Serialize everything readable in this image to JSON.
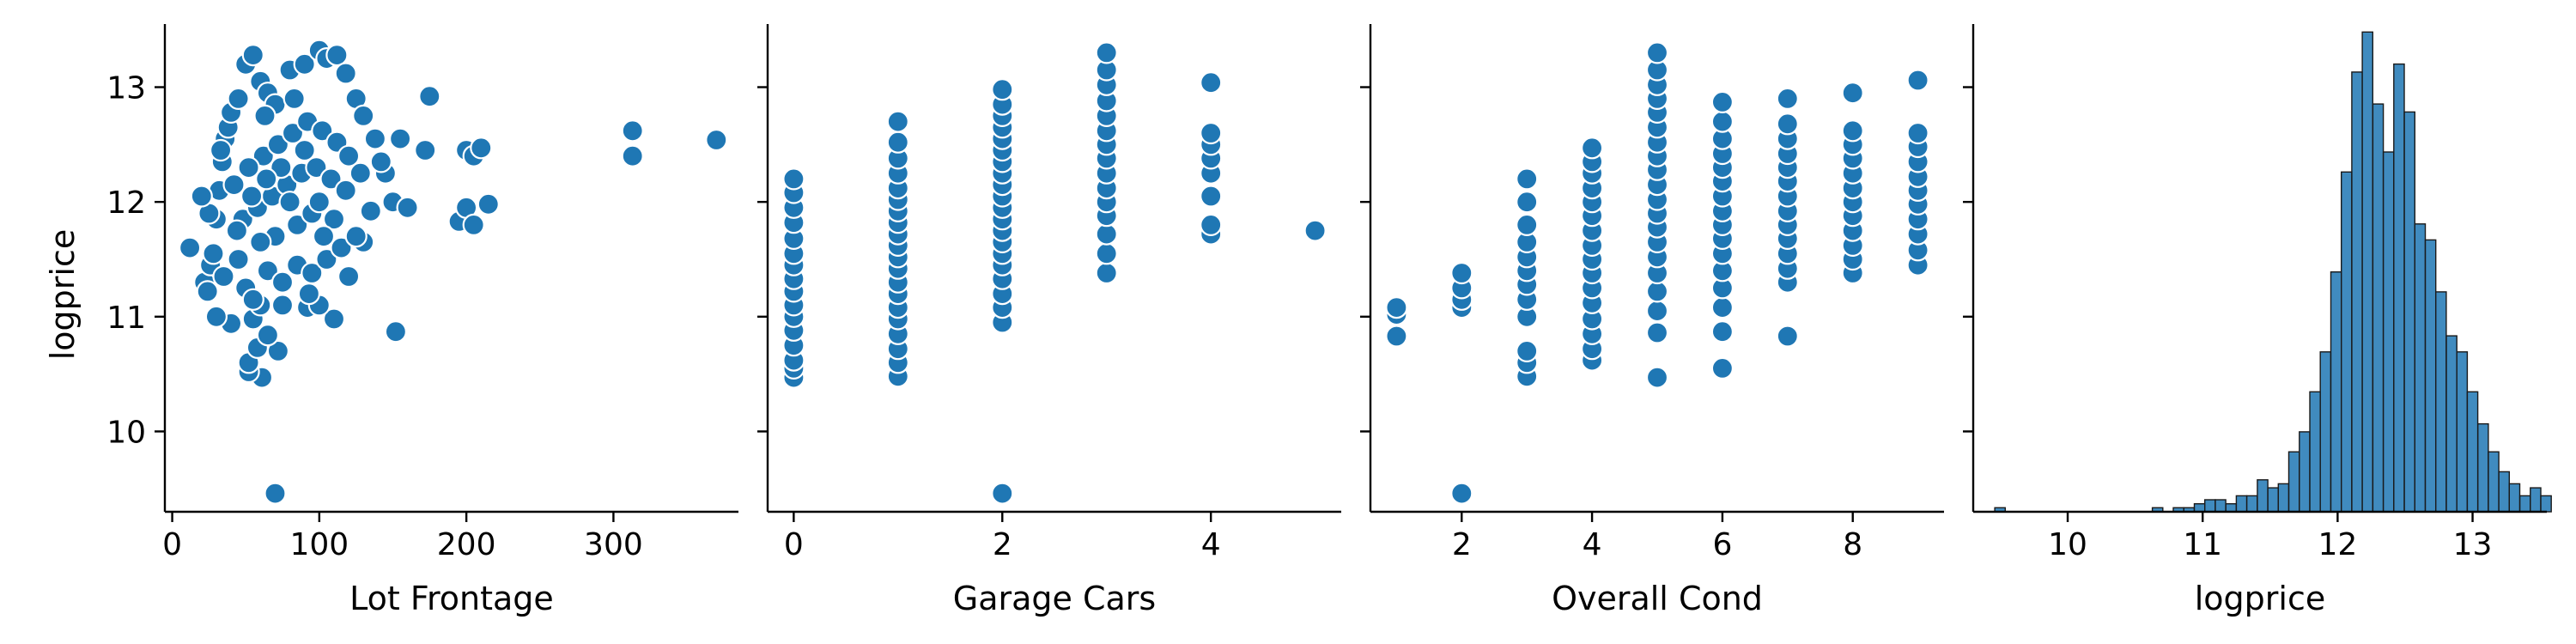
{
  "colors": {
    "marker": "#1f77b4",
    "marker_edge": "#ffffff",
    "bar": "#1f77b4",
    "bar_edge": "#1a1a1a",
    "axis": "#000000"
  },
  "figure": {
    "ylabel": "logprice"
  },
  "chart_data": [
    {
      "type": "scatter",
      "title": "",
      "xlabel": "Lot Frontage",
      "ylabel": "logprice",
      "xlim": [
        -5,
        385
      ],
      "ylim": [
        9.3,
        13.55
      ],
      "xticks": [
        0,
        100,
        200,
        300
      ],
      "yticks": [
        10,
        11,
        12,
        13
      ],
      "grid": false,
      "points": [
        [
          70,
          9.46
        ],
        [
          152,
          10.87
        ],
        [
          61,
          10.47
        ],
        [
          52,
          10.52
        ],
        [
          52,
          10.6
        ],
        [
          58,
          10.73
        ],
        [
          72,
          10.7
        ],
        [
          65,
          10.84
        ],
        [
          92,
          11.08
        ],
        [
          110,
          10.98
        ],
        [
          40,
          10.94
        ],
        [
          55,
          10.98
        ],
        [
          60,
          11.1
        ],
        [
          75,
          11.1
        ],
        [
          100,
          11.1
        ],
        [
          120,
          11.35
        ],
        [
          130,
          11.65
        ],
        [
          135,
          11.92
        ],
        [
          150,
          12.0
        ],
        [
          160,
          11.95
        ],
        [
          145,
          12.25
        ],
        [
          155,
          12.55
        ],
        [
          172,
          12.45
        ],
        [
          175,
          12.92
        ],
        [
          195,
          11.83
        ],
        [
          200,
          11.95
        ],
        [
          205,
          11.8
        ],
        [
          200,
          12.45
        ],
        [
          205,
          12.4
        ],
        [
          210,
          12.47
        ],
        [
          215,
          11.98
        ],
        [
          313,
          12.62
        ],
        [
          313,
          12.4
        ],
        [
          370,
          12.54
        ],
        [
          12,
          11.6
        ],
        [
          22,
          11.3
        ],
        [
          24,
          11.22
        ],
        [
          26,
          11.45
        ],
        [
          28,
          11.55
        ],
        [
          30,
          11.85
        ],
        [
          32,
          12.1
        ],
        [
          34,
          12.35
        ],
        [
          36,
          12.55
        ],
        [
          38,
          12.65
        ],
        [
          40,
          12.78
        ],
        [
          45,
          12.9
        ],
        [
          50,
          13.2
        ],
        [
          55,
          13.28
        ],
        [
          60,
          13.05
        ],
        [
          65,
          12.95
        ],
        [
          70,
          12.85
        ],
        [
          80,
          13.15
        ],
        [
          90,
          13.2
        ],
        [
          100,
          13.32
        ],
        [
          105,
          13.25
        ],
        [
          112,
          13.28
        ],
        [
          118,
          13.12
        ],
        [
          125,
          12.9
        ],
        [
          130,
          12.75
        ],
        [
          138,
          12.55
        ],
        [
          142,
          12.35
        ],
        [
          35,
          11.35
        ],
        [
          45,
          11.5
        ],
        [
          50,
          11.25
        ],
        [
          55,
          11.15
        ],
        [
          65,
          11.4
        ],
        [
          75,
          11.3
        ],
        [
          85,
          11.45
        ],
        [
          95,
          11.38
        ],
        [
          105,
          11.5
        ],
        [
          115,
          11.6
        ],
        [
          125,
          11.7
        ],
        [
          48,
          11.85
        ],
        [
          58,
          11.95
        ],
        [
          68,
          12.05
        ],
        [
          78,
          12.15
        ],
        [
          88,
          12.25
        ],
        [
          98,
          12.3
        ],
        [
          108,
          12.2
        ],
        [
          118,
          12.1
        ],
        [
          62,
          12.4
        ],
        [
          72,
          12.5
        ],
        [
          82,
          12.6
        ],
        [
          92,
          12.7
        ],
        [
          102,
          12.62
        ],
        [
          112,
          12.52
        ],
        [
          42,
          12.15
        ],
        [
          52,
          12.3
        ],
        [
          85,
          11.8
        ],
        [
          95,
          11.9
        ],
        [
          70,
          11.7
        ],
        [
          60,
          11.65
        ],
        [
          80,
          12.0
        ],
        [
          90,
          12.45
        ],
        [
          100,
          12.0
        ],
        [
          74,
          12.3
        ],
        [
          64,
          12.2
        ],
        [
          54,
          12.05
        ],
        [
          44,
          11.75
        ],
        [
          110,
          11.85
        ],
        [
          120,
          12.4
        ],
        [
          128,
          12.25
        ],
        [
          30,
          11.0
        ],
        [
          25,
          11.9
        ],
        [
          20,
          12.05
        ],
        [
          33,
          12.45
        ],
        [
          63,
          12.75
        ],
        [
          83,
          12.9
        ],
        [
          93,
          11.2
        ],
        [
          103,
          11.7
        ]
      ]
    },
    {
      "type": "scatter",
      "title": "",
      "xlabel": "Garage Cars",
      "ylabel": "",
      "xlim": [
        -0.25,
        5.25
      ],
      "ylim": [
        9.3,
        13.55
      ],
      "xticks": [
        0,
        2,
        4
      ],
      "yticks": [
        10,
        11,
        12,
        13
      ],
      "grid": false,
      "points": [
        [
          0,
          10.47
        ],
        [
          0,
          10.55
        ],
        [
          0,
          10.62
        ],
        [
          0,
          10.75
        ],
        [
          0,
          10.88
        ],
        [
          0,
          11.0
        ],
        [
          0,
          11.1
        ],
        [
          0,
          11.22
        ],
        [
          0,
          11.33
        ],
        [
          0,
          11.45
        ],
        [
          0,
          11.55
        ],
        [
          0,
          11.68
        ],
        [
          0,
          11.82
        ],
        [
          0,
          11.95
        ],
        [
          0,
          12.08
        ],
        [
          0,
          12.2
        ],
        [
          1,
          10.48
        ],
        [
          1,
          10.6
        ],
        [
          1,
          10.72
        ],
        [
          1,
          10.85
        ],
        [
          1,
          10.98
        ],
        [
          1,
          11.08
        ],
        [
          1,
          11.2
        ],
        [
          1,
          11.3
        ],
        [
          1,
          11.42
        ],
        [
          1,
          11.52
        ],
        [
          1,
          11.62
        ],
        [
          1,
          11.72
        ],
        [
          1,
          11.82
        ],
        [
          1,
          11.92
        ],
        [
          1,
          12.02
        ],
        [
          1,
          12.12
        ],
        [
          1,
          12.25
        ],
        [
          1,
          12.38
        ],
        [
          1,
          12.52
        ],
        [
          1,
          12.7
        ],
        [
          2,
          9.46
        ],
        [
          2,
          10.95
        ],
        [
          2,
          11.08
        ],
        [
          2,
          11.2
        ],
        [
          2,
          11.33
        ],
        [
          2,
          11.45
        ],
        [
          2,
          11.55
        ],
        [
          2,
          11.65
        ],
        [
          2,
          11.75
        ],
        [
          2,
          11.85
        ],
        [
          2,
          11.95
        ],
        [
          2,
          12.05
        ],
        [
          2,
          12.15
        ],
        [
          2,
          12.25
        ],
        [
          2,
          12.35
        ],
        [
          2,
          12.45
        ],
        [
          2,
          12.55
        ],
        [
          2,
          12.65
        ],
        [
          2,
          12.75
        ],
        [
          2,
          12.85
        ],
        [
          2,
          12.98
        ],
        [
          3,
          11.38
        ],
        [
          3,
          11.55
        ],
        [
          3,
          11.72
        ],
        [
          3,
          11.88
        ],
        [
          3,
          12.0
        ],
        [
          3,
          12.12
        ],
        [
          3,
          12.25
        ],
        [
          3,
          12.38
        ],
        [
          3,
          12.5
        ],
        [
          3,
          12.62
        ],
        [
          3,
          12.75
        ],
        [
          3,
          12.88
        ],
        [
          3,
          13.02
        ],
        [
          3,
          13.15
        ],
        [
          3,
          13.3
        ],
        [
          4,
          11.72
        ],
        [
          4,
          11.8
        ],
        [
          4,
          12.05
        ],
        [
          4,
          12.25
        ],
        [
          4,
          12.38
        ],
        [
          4,
          12.5
        ],
        [
          4,
          12.6
        ],
        [
          4,
          13.04
        ],
        [
          5,
          11.75
        ]
      ]
    },
    {
      "type": "scatter",
      "title": "",
      "xlabel": "Overall Cond",
      "ylabel": "",
      "xlim": [
        0.6,
        9.4
      ],
      "ylim": [
        9.3,
        13.55
      ],
      "xticks": [
        2,
        4,
        6,
        8
      ],
      "yticks": [
        10,
        11,
        12,
        13
      ],
      "grid": false,
      "points": [
        [
          1,
          10.83
        ],
        [
          1,
          11.02
        ],
        [
          1,
          11.08
        ],
        [
          2,
          9.46
        ],
        [
          2,
          11.08
        ],
        [
          2,
          11.15
        ],
        [
          2,
          11.25
        ],
        [
          2,
          11.38
        ],
        [
          3,
          10.48
        ],
        [
          3,
          10.6
        ],
        [
          3,
          10.7
        ],
        [
          3,
          11.0
        ],
        [
          3,
          11.15
        ],
        [
          3,
          11.28
        ],
        [
          3,
          11.4
        ],
        [
          3,
          11.52
        ],
        [
          3,
          11.65
        ],
        [
          3,
          11.8
        ],
        [
          3,
          12.0
        ],
        [
          3,
          12.2
        ],
        [
          4,
          10.62
        ],
        [
          4,
          10.72
        ],
        [
          4,
          10.85
        ],
        [
          4,
          10.98
        ],
        [
          4,
          11.12
        ],
        [
          4,
          11.25
        ],
        [
          4,
          11.38
        ],
        [
          4,
          11.5
        ],
        [
          4,
          11.62
        ],
        [
          4,
          11.75
        ],
        [
          4,
          11.88
        ],
        [
          4,
          12.0
        ],
        [
          4,
          12.12
        ],
        [
          4,
          12.25
        ],
        [
          4,
          12.35
        ],
        [
          4,
          12.47
        ],
        [
          5,
          10.47
        ],
        [
          5,
          10.86
        ],
        [
          5,
          11.05
        ],
        [
          5,
          11.22
        ],
        [
          5,
          11.38
        ],
        [
          5,
          11.52
        ],
        [
          5,
          11.65
        ],
        [
          5,
          11.78
        ],
        [
          5,
          11.9
        ],
        [
          5,
          12.02
        ],
        [
          5,
          12.15
        ],
        [
          5,
          12.28
        ],
        [
          5,
          12.4
        ],
        [
          5,
          12.52
        ],
        [
          5,
          12.65
        ],
        [
          5,
          12.78
        ],
        [
          5,
          12.9
        ],
        [
          5,
          13.02
        ],
        [
          5,
          13.15
        ],
        [
          5,
          13.3
        ],
        [
          6,
          10.55
        ],
        [
          6,
          10.87
        ],
        [
          6,
          11.08
        ],
        [
          6,
          11.25
        ],
        [
          6,
          11.4
        ],
        [
          6,
          11.55
        ],
        [
          6,
          11.68
        ],
        [
          6,
          11.8
        ],
        [
          6,
          11.92
        ],
        [
          6,
          12.05
        ],
        [
          6,
          12.18
        ],
        [
          6,
          12.3
        ],
        [
          6,
          12.42
        ],
        [
          6,
          12.55
        ],
        [
          6,
          12.7
        ],
        [
          6,
          12.87
        ],
        [
          7,
          10.83
        ],
        [
          7,
          11.3
        ],
        [
          7,
          11.42
        ],
        [
          7,
          11.55
        ],
        [
          7,
          11.68
        ],
        [
          7,
          11.8
        ],
        [
          7,
          11.92
        ],
        [
          7,
          12.05
        ],
        [
          7,
          12.18
        ],
        [
          7,
          12.3
        ],
        [
          7,
          12.42
        ],
        [
          7,
          12.55
        ],
        [
          7,
          12.68
        ],
        [
          7,
          12.9
        ],
        [
          8,
          11.38
        ],
        [
          8,
          11.5
        ],
        [
          8,
          11.62
        ],
        [
          8,
          11.75
        ],
        [
          8,
          11.88
        ],
        [
          8,
          12.0
        ],
        [
          8,
          12.12
        ],
        [
          8,
          12.25
        ],
        [
          8,
          12.38
        ],
        [
          8,
          12.5
        ],
        [
          8,
          12.62
        ],
        [
          8,
          12.95
        ],
        [
          9,
          11.45
        ],
        [
          9,
          11.58
        ],
        [
          9,
          11.72
        ],
        [
          9,
          11.85
        ],
        [
          9,
          11.98
        ],
        [
          9,
          12.1
        ],
        [
          9,
          12.22
        ],
        [
          9,
          12.35
        ],
        [
          9,
          12.48
        ],
        [
          9,
          12.6
        ],
        [
          9,
          13.06
        ]
      ]
    },
    {
      "type": "bar",
      "title": "",
      "xlabel": "logprice",
      "ylabel": "",
      "xlim": [
        9.3,
        13.55
      ],
      "xticks": [
        10,
        11,
        12,
        13
      ],
      "ymax": 122,
      "grid": false,
      "histogram": {
        "start": 9.46,
        "bin_width": 0.0778,
        "counts": [
          1,
          0,
          0,
          0,
          0,
          0,
          0,
          0,
          0,
          0,
          0,
          0,
          0,
          0,
          0,
          1,
          0,
          1,
          1,
          2,
          3,
          3,
          2,
          4,
          4,
          8,
          6,
          7,
          15,
          20,
          30,
          40,
          60,
          85,
          110,
          120,
          102,
          90,
          112,
          100,
          72,
          68,
          55,
          44,
          40,
          30,
          22,
          15,
          10,
          7,
          4,
          6,
          4
        ]
      }
    }
  ]
}
